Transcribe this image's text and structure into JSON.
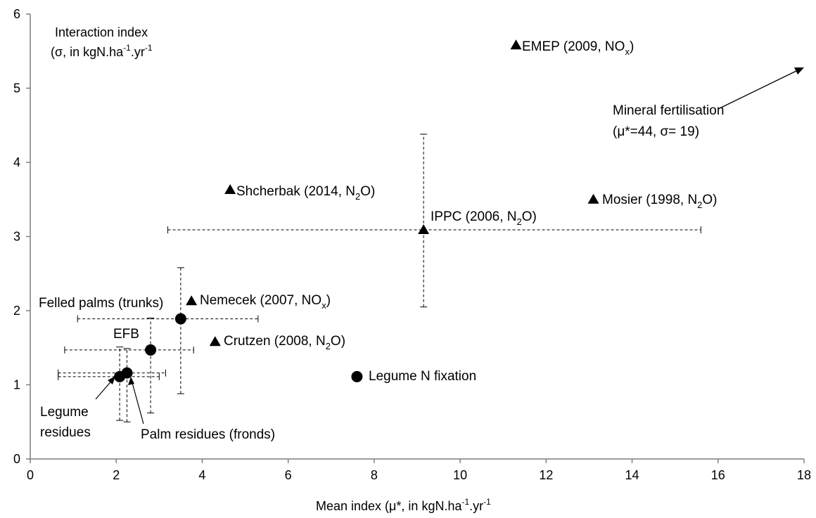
{
  "chart_data": {
    "type": "scatter",
    "xlabel": {
      "main": "Mean index (μ*, in kgN.ha",
      "sup1": "-1",
      "mid": ".yr",
      "sup2": "-1"
    },
    "ylabel": {
      "line1": "Interaction  index",
      "line2_main": "(σ, in kgN.ha",
      "sup1": "-1",
      "mid": ".yr",
      "sup2": "-1"
    },
    "xlim": [
      0,
      18
    ],
    "ylim": [
      0,
      6
    ],
    "x_ticks": [
      "0",
      "2",
      "4",
      "6",
      "8",
      "10",
      "12",
      "14",
      "16",
      "18"
    ],
    "y_ticks": [
      "0",
      "1",
      "2",
      "3",
      "4",
      "5",
      "6"
    ],
    "grid": false,
    "series": [
      {
        "marker": "triangle",
        "points": [
          {
            "x": 11.3,
            "y": 5.58,
            "label": {
              "pre": "EMEP (2009, NO",
              "sub": "x",
              "post": ")"
            }
          },
          {
            "x": 13.1,
            "y": 3.5,
            "label": {
              "pre": "Mosier (1998, N",
              "sub": "2",
              "post": "O)"
            }
          },
          {
            "x": 4.65,
            "y": 3.63,
            "label": {
              "pre": "Shcherbak (2014, N",
              "sub": "2",
              "post": "O)"
            }
          },
          {
            "x": 9.15,
            "y": 3.09,
            "xerr": [
              3.2,
              15.6
            ],
            "yerr": [
              2.05,
              4.38
            ],
            "label": {
              "pre": "IPPC (2006, N",
              "sub": "2",
              "post": "O)"
            }
          },
          {
            "x": 3.75,
            "y": 2.13,
            "label": {
              "pre": "Nemecek (2007, NO",
              "sub": "x",
              "post": ")"
            }
          },
          {
            "x": 4.3,
            "y": 1.58,
            "label": {
              "pre": "Crutzen (2008, N",
              "sub": "2",
              "post": "O)"
            }
          }
        ]
      },
      {
        "marker": "circle",
        "points": [
          {
            "x": 3.5,
            "y": 1.89,
            "xerr": [
              1.1,
              5.3
            ],
            "yerr": [
              0.88,
              2.58
            ],
            "label": "Felled palms  (trunks)"
          },
          {
            "x": 2.8,
            "y": 1.47,
            "xerr": [
              0.8,
              3.8
            ],
            "yerr": [
              0.62,
              1.9
            ],
            "label": "EFB"
          },
          {
            "x": 2.25,
            "y": 1.16,
            "xerr": [
              0.65,
              3.15
            ],
            "yerr": [
              0.5,
              1.49
            ],
            "label": "Palm residues  (fronds)"
          },
          {
            "x": 2.08,
            "y": 1.11,
            "xerr": [
              0.65,
              3.0
            ],
            "yerr": [
              0.52,
              1.51
            ],
            "label_line1": "Legume",
            "label_line2": "residues"
          },
          {
            "x": 7.6,
            "y": 1.11,
            "label": "Legume  N fixation"
          }
        ]
      }
    ],
    "annotation": {
      "line1": "Mineral fertilisation",
      "line2": "(μ*=44,  σ= 19)",
      "arrow_to": [
        18.0,
        5.3
      ]
    }
  }
}
